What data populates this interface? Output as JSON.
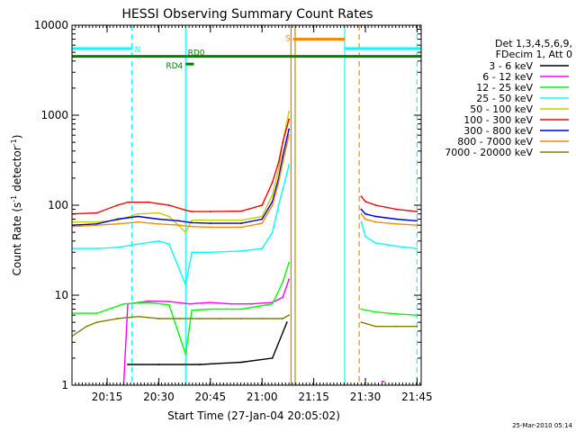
{
  "chart_data": {
    "type": "line",
    "title": "HESSI Observing Summary Count Rates",
    "xlabel": "Start Time (27-Jan-04 20:05:02)",
    "ylabel": "Count Rate (s⁻¹ detector⁻¹)",
    "ylabel_main": "Count Rate (s",
    "ylabel_sup1": "-1",
    "ylabel_mid": " detector",
    "ylabel_sup2": "-1",
    "ylabel_end": ")",
    "yscale": "log",
    "ylim": [
      1,
      10000
    ],
    "xlim_minutes": [
      20.08,
      21.77
    ],
    "y_ticks": [
      {
        "value": 1,
        "label": "1"
      },
      {
        "value": 10,
        "label": "10"
      },
      {
        "value": 100,
        "label": "100"
      },
      {
        "value": 1000,
        "label": "1000"
      },
      {
        "value": 10000,
        "label": "10000"
      }
    ],
    "x_ticks": [
      {
        "time": "20:15",
        "hour": 20.25
      },
      {
        "time": "20:30",
        "hour": 20.5
      },
      {
        "time": "20:45",
        "hour": 20.75
      },
      {
        "time": "21:00",
        "hour": 21.0
      },
      {
        "time": "21:15",
        "hour": 21.25
      },
      {
        "time": "21:30",
        "hour": 21.5
      },
      {
        "time": "21:45",
        "hour": 21.75
      }
    ],
    "legend": {
      "header_line1": "Det 1,3,4,5,6,9,",
      "header_line2": "FDecim 1, Att 0",
      "entries": [
        {
          "label": "3 - 6 keV",
          "color": "#000000"
        },
        {
          "label": "6 - 12 keV",
          "color": "#ff00ff"
        },
        {
          "label": "12 - 25 keV",
          "color": "#00ff00"
        },
        {
          "label": "25 - 50 keV",
          "color": "#00ffff"
        },
        {
          "label": "50 - 100 keV",
          "color": "#cccc00"
        },
        {
          "label": "100 - 300 keV",
          "color": "#ff0000"
        },
        {
          "label": "300 - 800 keV",
          "color": "#0000cc"
        },
        {
          "label": "800 - 7000 keV",
          "color": "#ff8800"
        },
        {
          "label": "7000 - 20000 keV",
          "color": "#808000"
        }
      ]
    },
    "flags": [
      {
        "label": "N",
        "color": "#00ffff",
        "value": 5500,
        "segments": [
          [
            20.08,
            20.37
          ],
          [
            21.4,
            21.77
          ]
        ]
      },
      {
        "label": "S",
        "color": "#ff8800",
        "value": 7000,
        "segments": [
          [
            21.15,
            21.4
          ]
        ]
      },
      {
        "label": "RD0",
        "color": "#008000",
        "value": 4500,
        "segments": [
          [
            20.08,
            21.77
          ]
        ]
      },
      {
        "label": "RD4",
        "color": "#008000",
        "value": 3700,
        "segments": [
          [
            20.63,
            20.67
          ]
        ]
      }
    ],
    "vertical_markers": [
      {
        "hour": 20.37,
        "color": "#00ffff",
        "style": "dashed"
      },
      {
        "hour": 20.63,
        "color": "#00ffff",
        "style": "solid"
      },
      {
        "hour": 21.14,
        "color": "#cc8800",
        "style": "solid"
      },
      {
        "hour": 21.16,
        "color": "#cc8800",
        "style": "solid"
      },
      {
        "hour": 21.4,
        "color": "#00ffff",
        "style": "solid"
      },
      {
        "hour": 21.47,
        "color": "#ff8800",
        "style": "dashed"
      },
      {
        "hour": 21.75,
        "color": "#00ffff",
        "style": "dashed"
      }
    ],
    "series": [
      {
        "name": "3 - 6 keV",
        "color": "#000000",
        "segments": [
          {
            "x": [
              20.35,
              20.5,
              20.7,
              20.9,
              21.05,
              21.12
            ],
            "y": [
              1.7,
              1.7,
              1.7,
              1.8,
              2.0,
              5.0
            ]
          }
        ]
      },
      {
        "name": "6 - 12 keV",
        "color": "#ff00ff",
        "segments": [
          {
            "x": [
              20.33,
              20.35,
              20.45,
              20.55,
              20.65,
              20.75,
              20.85,
              20.95,
              21.05,
              21.1,
              21.13
            ],
            "y": [
              1.0,
              8.0,
              8.6,
              8.5,
              8.0,
              8.3,
              8.0,
              8.0,
              8.3,
              9.5,
              15
            ]
          },
          {
            "x": [
              21.58,
              21.59
            ],
            "y": [
              1.1,
              1.1
            ]
          }
        ]
      },
      {
        "name": "12 - 25 keV",
        "color": "#00ff00",
        "segments": [
          {
            "x": [
              20.08,
              20.2,
              20.33,
              20.45,
              20.55,
              20.63,
              20.66,
              20.75,
              20.9,
              21.05,
              21.1,
              21.13
            ],
            "y": [
              6.3,
              6.3,
              8.0,
              8.3,
              7.8,
              2.2,
              6.8,
              7.0,
              7.0,
              8.0,
              14,
              23
            ]
          },
          {
            "x": [
              21.48,
              21.55,
              21.65,
              21.75
            ],
            "y": [
              7.0,
              6.5,
              6.2,
              6.0
            ]
          }
        ]
      },
      {
        "name": "25 - 50 keV",
        "color": "#00ffff",
        "segments": [
          {
            "x": [
              20.08,
              20.2,
              20.3,
              20.4,
              20.5,
              20.55,
              20.63,
              20.66,
              20.75,
              20.9,
              21.0,
              21.05,
              21.08,
              21.1,
              21.13
            ],
            "y": [
              33,
              33,
              34,
              37,
              40,
              37,
              13,
              30,
              30,
              31,
              33,
              50,
              100,
              150,
              280
            ]
          },
          {
            "x": [
              21.48,
              21.5,
              21.55,
              21.65,
              21.75
            ],
            "y": [
              65,
              45,
              38,
              35,
              33
            ]
          }
        ]
      },
      {
        "name": "50 - 100 keV",
        "color": "#cccc00",
        "segments": [
          {
            "x": [
              20.08,
              20.2,
              20.3,
              20.4,
              20.5,
              20.55,
              20.63,
              20.66,
              20.75,
              20.9,
              21.0,
              21.05,
              21.08,
              21.1,
              21.13
            ],
            "y": [
              65,
              65,
              68,
              80,
              82,
              75,
              50,
              68,
              68,
              68,
              75,
              130,
              250,
              500,
              1100
            ]
          }
        ]
      },
      {
        "name": "100 - 300 keV",
        "color": "#ff0000",
        "segments": [
          {
            "x": [
              20.08,
              20.2,
              20.3,
              20.35,
              20.45,
              20.55,
              20.63,
              20.66,
              20.75,
              20.9,
              21.0,
              21.05,
              21.08,
              21.1,
              21.13
            ],
            "y": [
              80,
              82,
              100,
              108,
              108,
              100,
              88,
              85,
              85,
              86,
              100,
              180,
              300,
              500,
              900
            ]
          },
          {
            "x": [
              21.48,
              21.5,
              21.55,
              21.65,
              21.75
            ],
            "y": [
              125,
              110,
              100,
              90,
              85
            ]
          }
        ]
      },
      {
        "name": "300 - 800 keV",
        "color": "#0000cc",
        "segments": [
          {
            "x": [
              20.08,
              20.2,
              20.3,
              20.4,
              20.5,
              20.6,
              20.66,
              20.75,
              20.9,
              21.0,
              21.05,
              21.08,
              21.1,
              21.13
            ],
            "y": [
              60,
              62,
              70,
              75,
              70,
              67,
              64,
              63,
              63,
              70,
              110,
              200,
              350,
              700
            ]
          },
          {
            "x": [
              21.48,
              21.5,
              21.55,
              21.65,
              21.75
            ],
            "y": [
              90,
              80,
              75,
              70,
              67
            ]
          }
        ]
      },
      {
        "name": "800 - 7000 keV",
        "color": "#ff8800",
        "segments": [
          {
            "x": [
              20.08,
              20.2,
              20.3,
              20.4,
              20.5,
              20.6,
              20.66,
              20.75,
              20.9,
              21.0,
              21.05,
              21.08,
              21.1,
              21.13
            ],
            "y": [
              58,
              60,
              62,
              65,
              62,
              60,
              58,
              57,
              57,
              63,
              100,
              180,
              300,
              600
            ]
          },
          {
            "x": [
              21.48,
              21.5,
              21.55,
              21.65,
              21.75
            ],
            "y": [
              80,
              70,
              65,
              62,
              60
            ]
          }
        ]
      },
      {
        "name": "7000 - 20000 keV",
        "color": "#808000",
        "segments": [
          {
            "x": [
              20.08,
              20.15,
              20.2,
              20.3,
              20.4,
              20.5,
              20.6,
              20.7,
              20.8,
              20.9,
              21.0,
              21.1,
              21.13
            ],
            "y": [
              3.5,
              4.5,
              5.0,
              5.5,
              5.8,
              5.5,
              5.5,
              5.5,
              5.5,
              5.5,
              5.5,
              5.5,
              6.0
            ]
          },
          {
            "x": [
              21.48,
              21.55,
              21.65,
              21.75
            ],
            "y": [
              5.0,
              4.5,
              4.5,
              4.5
            ]
          }
        ]
      }
    ]
  },
  "footer": {
    "stamp": "25-Mar-2010 05:14"
  }
}
